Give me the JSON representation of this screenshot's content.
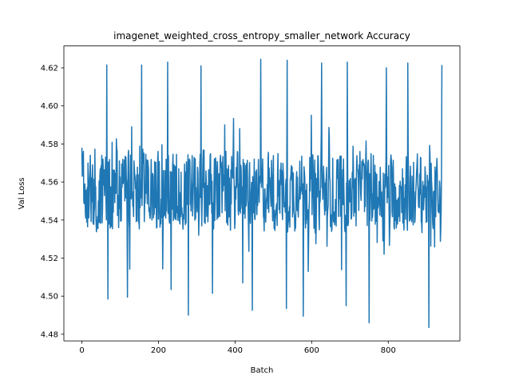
{
  "chart_data": {
    "type": "line",
    "title": "imagenet_weighted_cross_entropy_smaller_network Accuracy",
    "xlabel": "Batch",
    "ylabel": "Val Loss",
    "xlim": [
      -47,
      987
    ],
    "ylim": [
      4.4765,
      4.6315
    ],
    "xticks": [
      0,
      200,
      400,
      600,
      800
    ],
    "xtick_labels": [
      "0",
      "200",
      "400",
      "600",
      "800"
    ],
    "yticks": [
      4.48,
      4.5,
      4.52,
      4.54,
      4.56,
      4.58,
      4.6,
      4.62
    ],
    "ytick_labels": [
      "4.48",
      "4.50",
      "4.52",
      "4.54",
      "4.56",
      "4.58",
      "4.60",
      "4.62"
    ],
    "grid": false,
    "series": [
      {
        "color": "#1f77b4",
        "x_start": 0,
        "x_end": 940,
        "summary": {
          "min": 4.4835,
          "max": 4.625,
          "typical_low": 4.535,
          "typical_high": 4.575,
          "center": 4.555
        },
        "peaks": [
          [
            65,
            4.6215
          ],
          [
            156,
            4.6215
          ],
          [
            224,
            4.623
          ],
          [
            311,
            4.621
          ],
          [
            467,
            4.6245
          ],
          [
            536,
            4.624
          ],
          [
            626,
            4.6225
          ],
          [
            693,
            4.623
          ],
          [
            795,
            4.62
          ],
          [
            851,
            4.6225
          ],
          [
            940,
            4.6215
          ]
        ],
        "troughs": [
          [
            68,
            4.4985
          ],
          [
            119,
            4.4995
          ],
          [
            233,
            4.5035
          ],
          [
            278,
            4.49
          ],
          [
            341,
            4.5015
          ],
          [
            420,
            4.507
          ],
          [
            445,
            4.4925
          ],
          [
            534,
            4.4935
          ],
          [
            578,
            4.4895
          ],
          [
            690,
            4.495
          ],
          [
            750,
            4.486
          ],
          [
            906,
            4.4835
          ]
        ]
      }
    ]
  }
}
